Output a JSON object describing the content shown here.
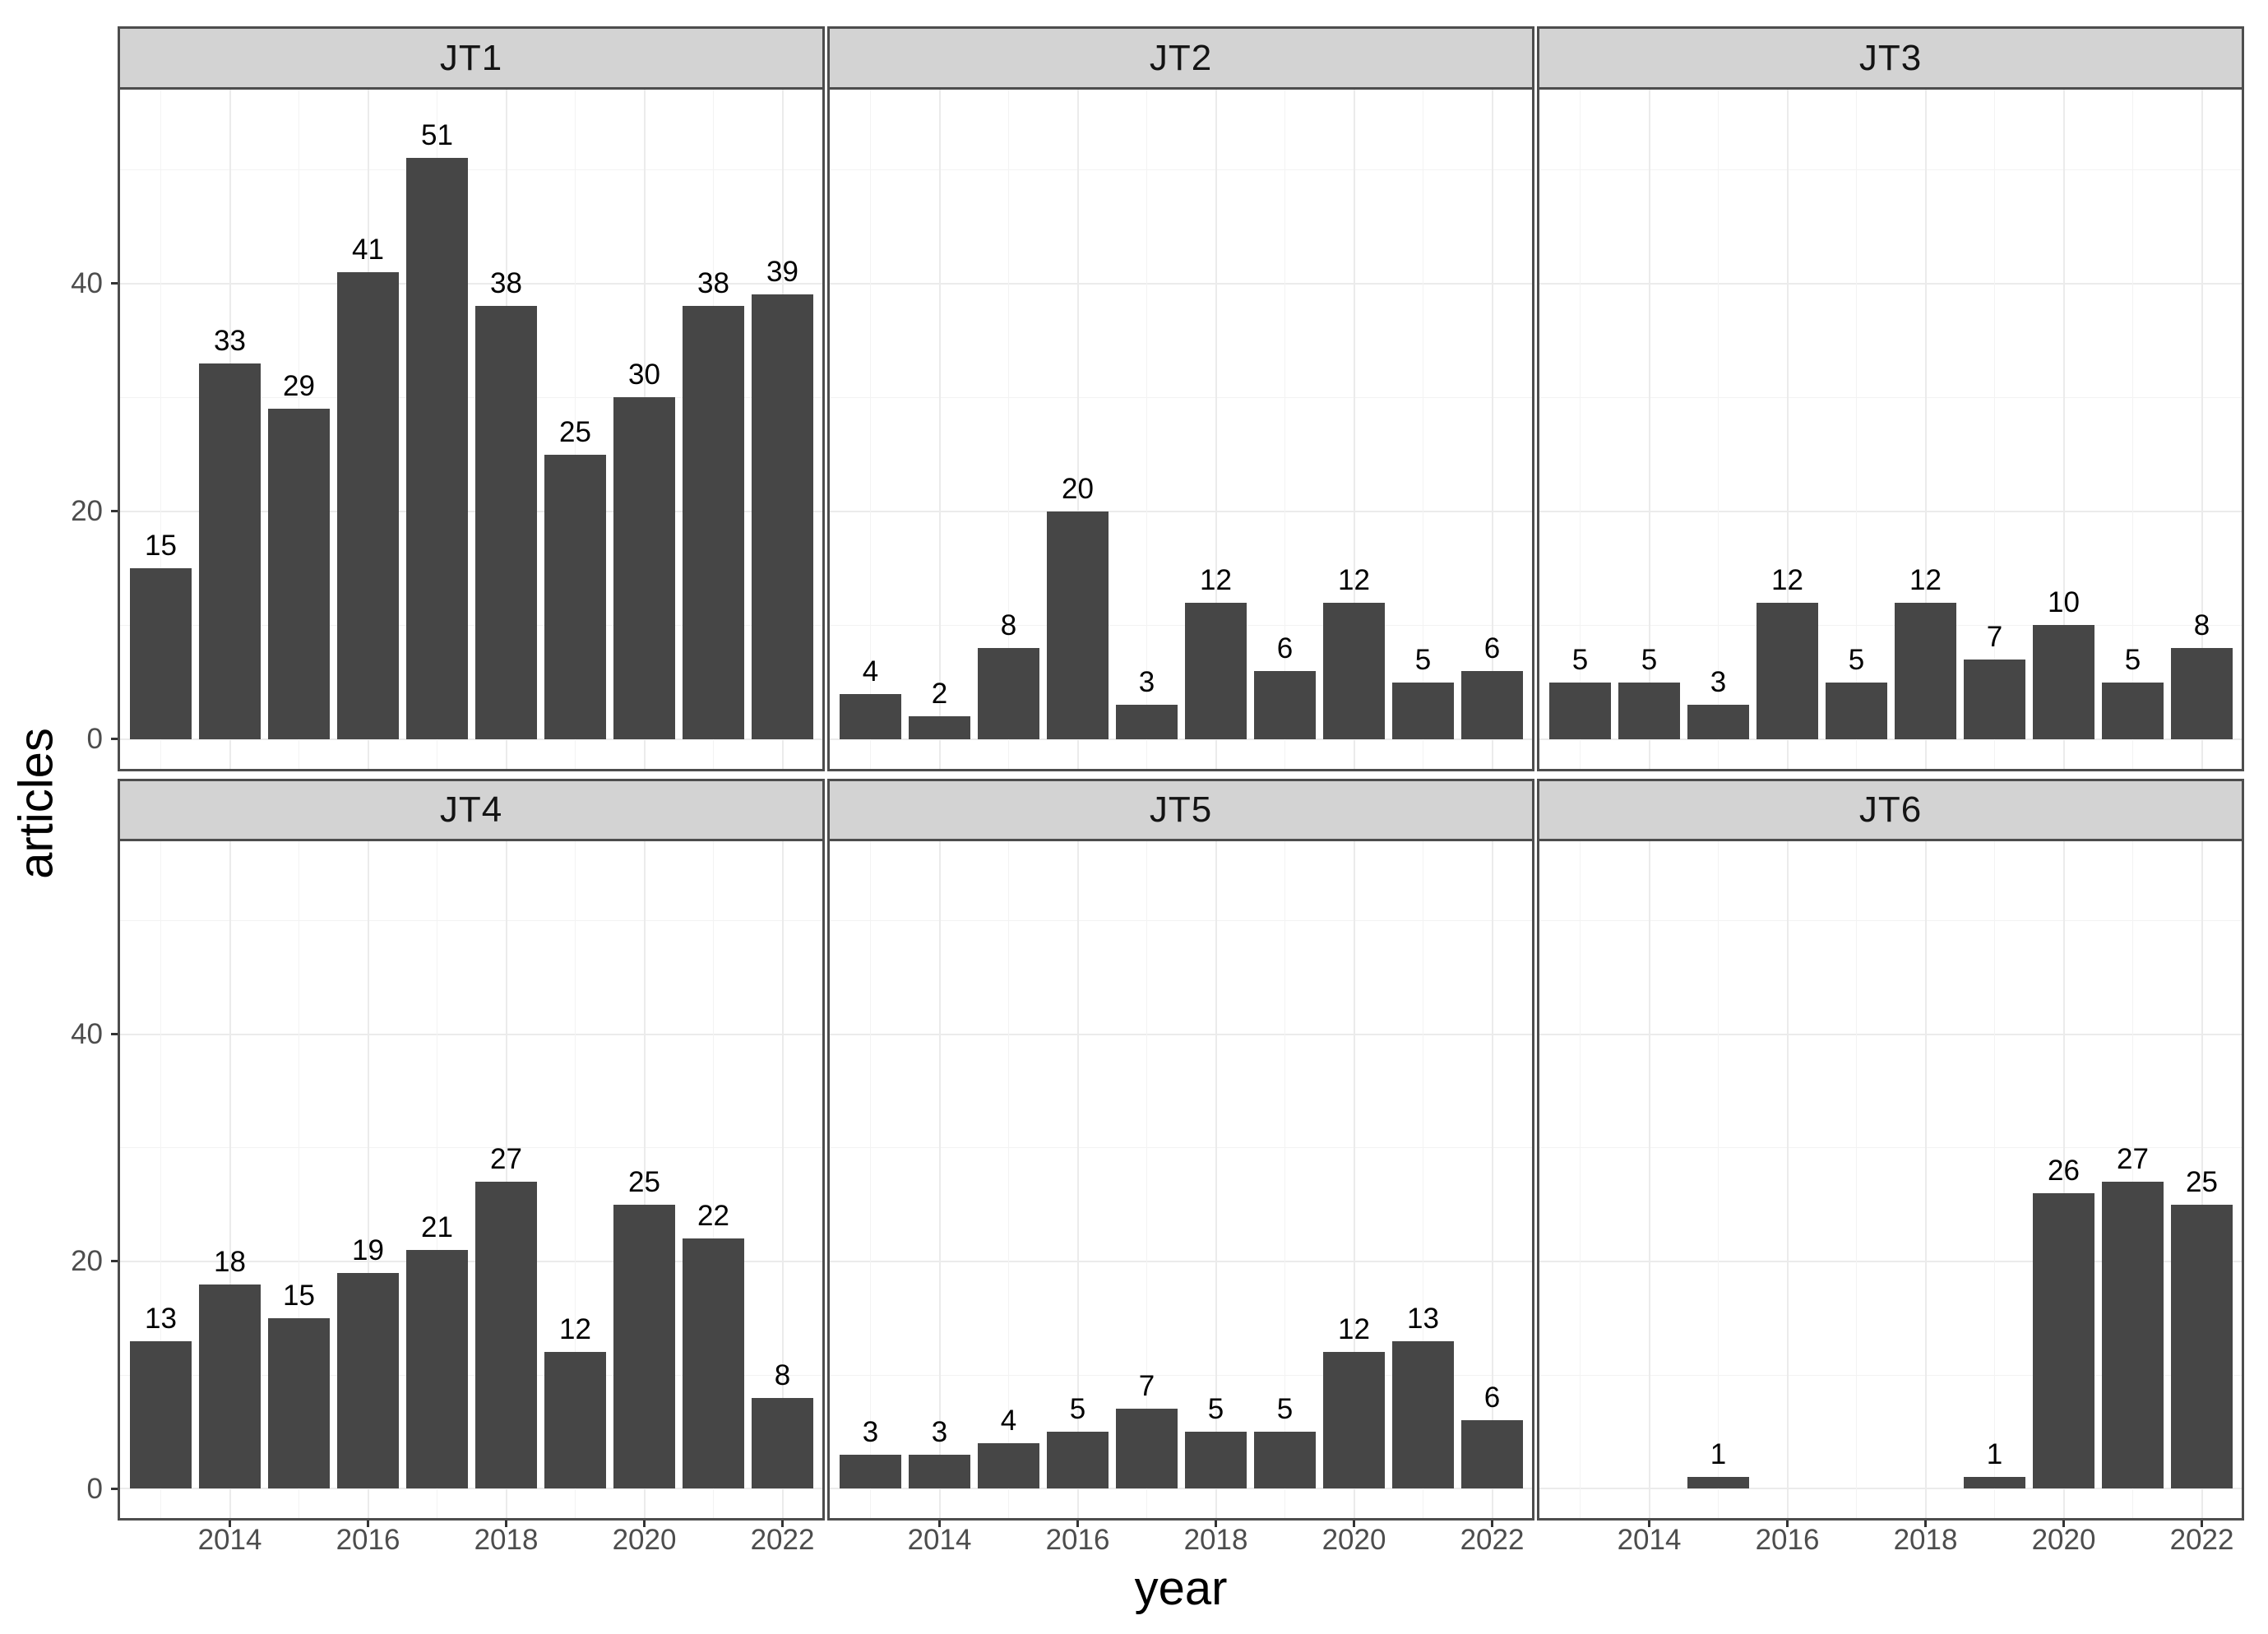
{
  "chart_data": {
    "type": "bar",
    "title": "",
    "xlabel": "year",
    "ylabel": "articles",
    "years": [
      2013,
      2014,
      2015,
      2016,
      2017,
      2018,
      2019,
      2020,
      2021,
      2022
    ],
    "x_ticks_major": [
      2014,
      2016,
      2018,
      2020,
      2022
    ],
    "x_ticks_minor": [
      2013,
      2015,
      2017,
      2019,
      2021
    ],
    "y_ticks": [
      0,
      20,
      40
    ],
    "y_minor_gridlines": [
      10,
      30,
      50
    ],
    "ylim": [
      -2.6,
      57
    ],
    "grid": true,
    "facets": [
      {
        "label": "JT1",
        "values": [
          15,
          33,
          29,
          41,
          51,
          38,
          25,
          30,
          38,
          39
        ]
      },
      {
        "label": "JT2",
        "values": [
          4,
          2,
          8,
          20,
          3,
          12,
          6,
          12,
          5,
          6
        ]
      },
      {
        "label": "JT3",
        "values": [
          5,
          5,
          3,
          12,
          5,
          12,
          7,
          10,
          5,
          8
        ]
      },
      {
        "label": "JT4",
        "values": [
          13,
          18,
          15,
          19,
          21,
          27,
          12,
          25,
          22,
          8
        ]
      },
      {
        "label": "JT5",
        "values": [
          3,
          3,
          4,
          5,
          7,
          5,
          5,
          12,
          13,
          6
        ]
      },
      {
        "label": "JT6",
        "values": [
          0,
          0,
          1,
          0,
          0,
          0,
          1,
          26,
          27,
          25
        ]
      }
    ],
    "bar_value_labels_shown": true,
    "zero_values_unlabeled": true
  },
  "colors": {
    "bar_fill": "#464646",
    "strip_background": "#d3d3d3",
    "panel_border": "#4d4d4d",
    "grid_major": "#ebebeb",
    "grid_minor": "#f3f3f3",
    "tick_label": "#4d4d4d",
    "text": "#000000",
    "background": "#ffffff"
  }
}
